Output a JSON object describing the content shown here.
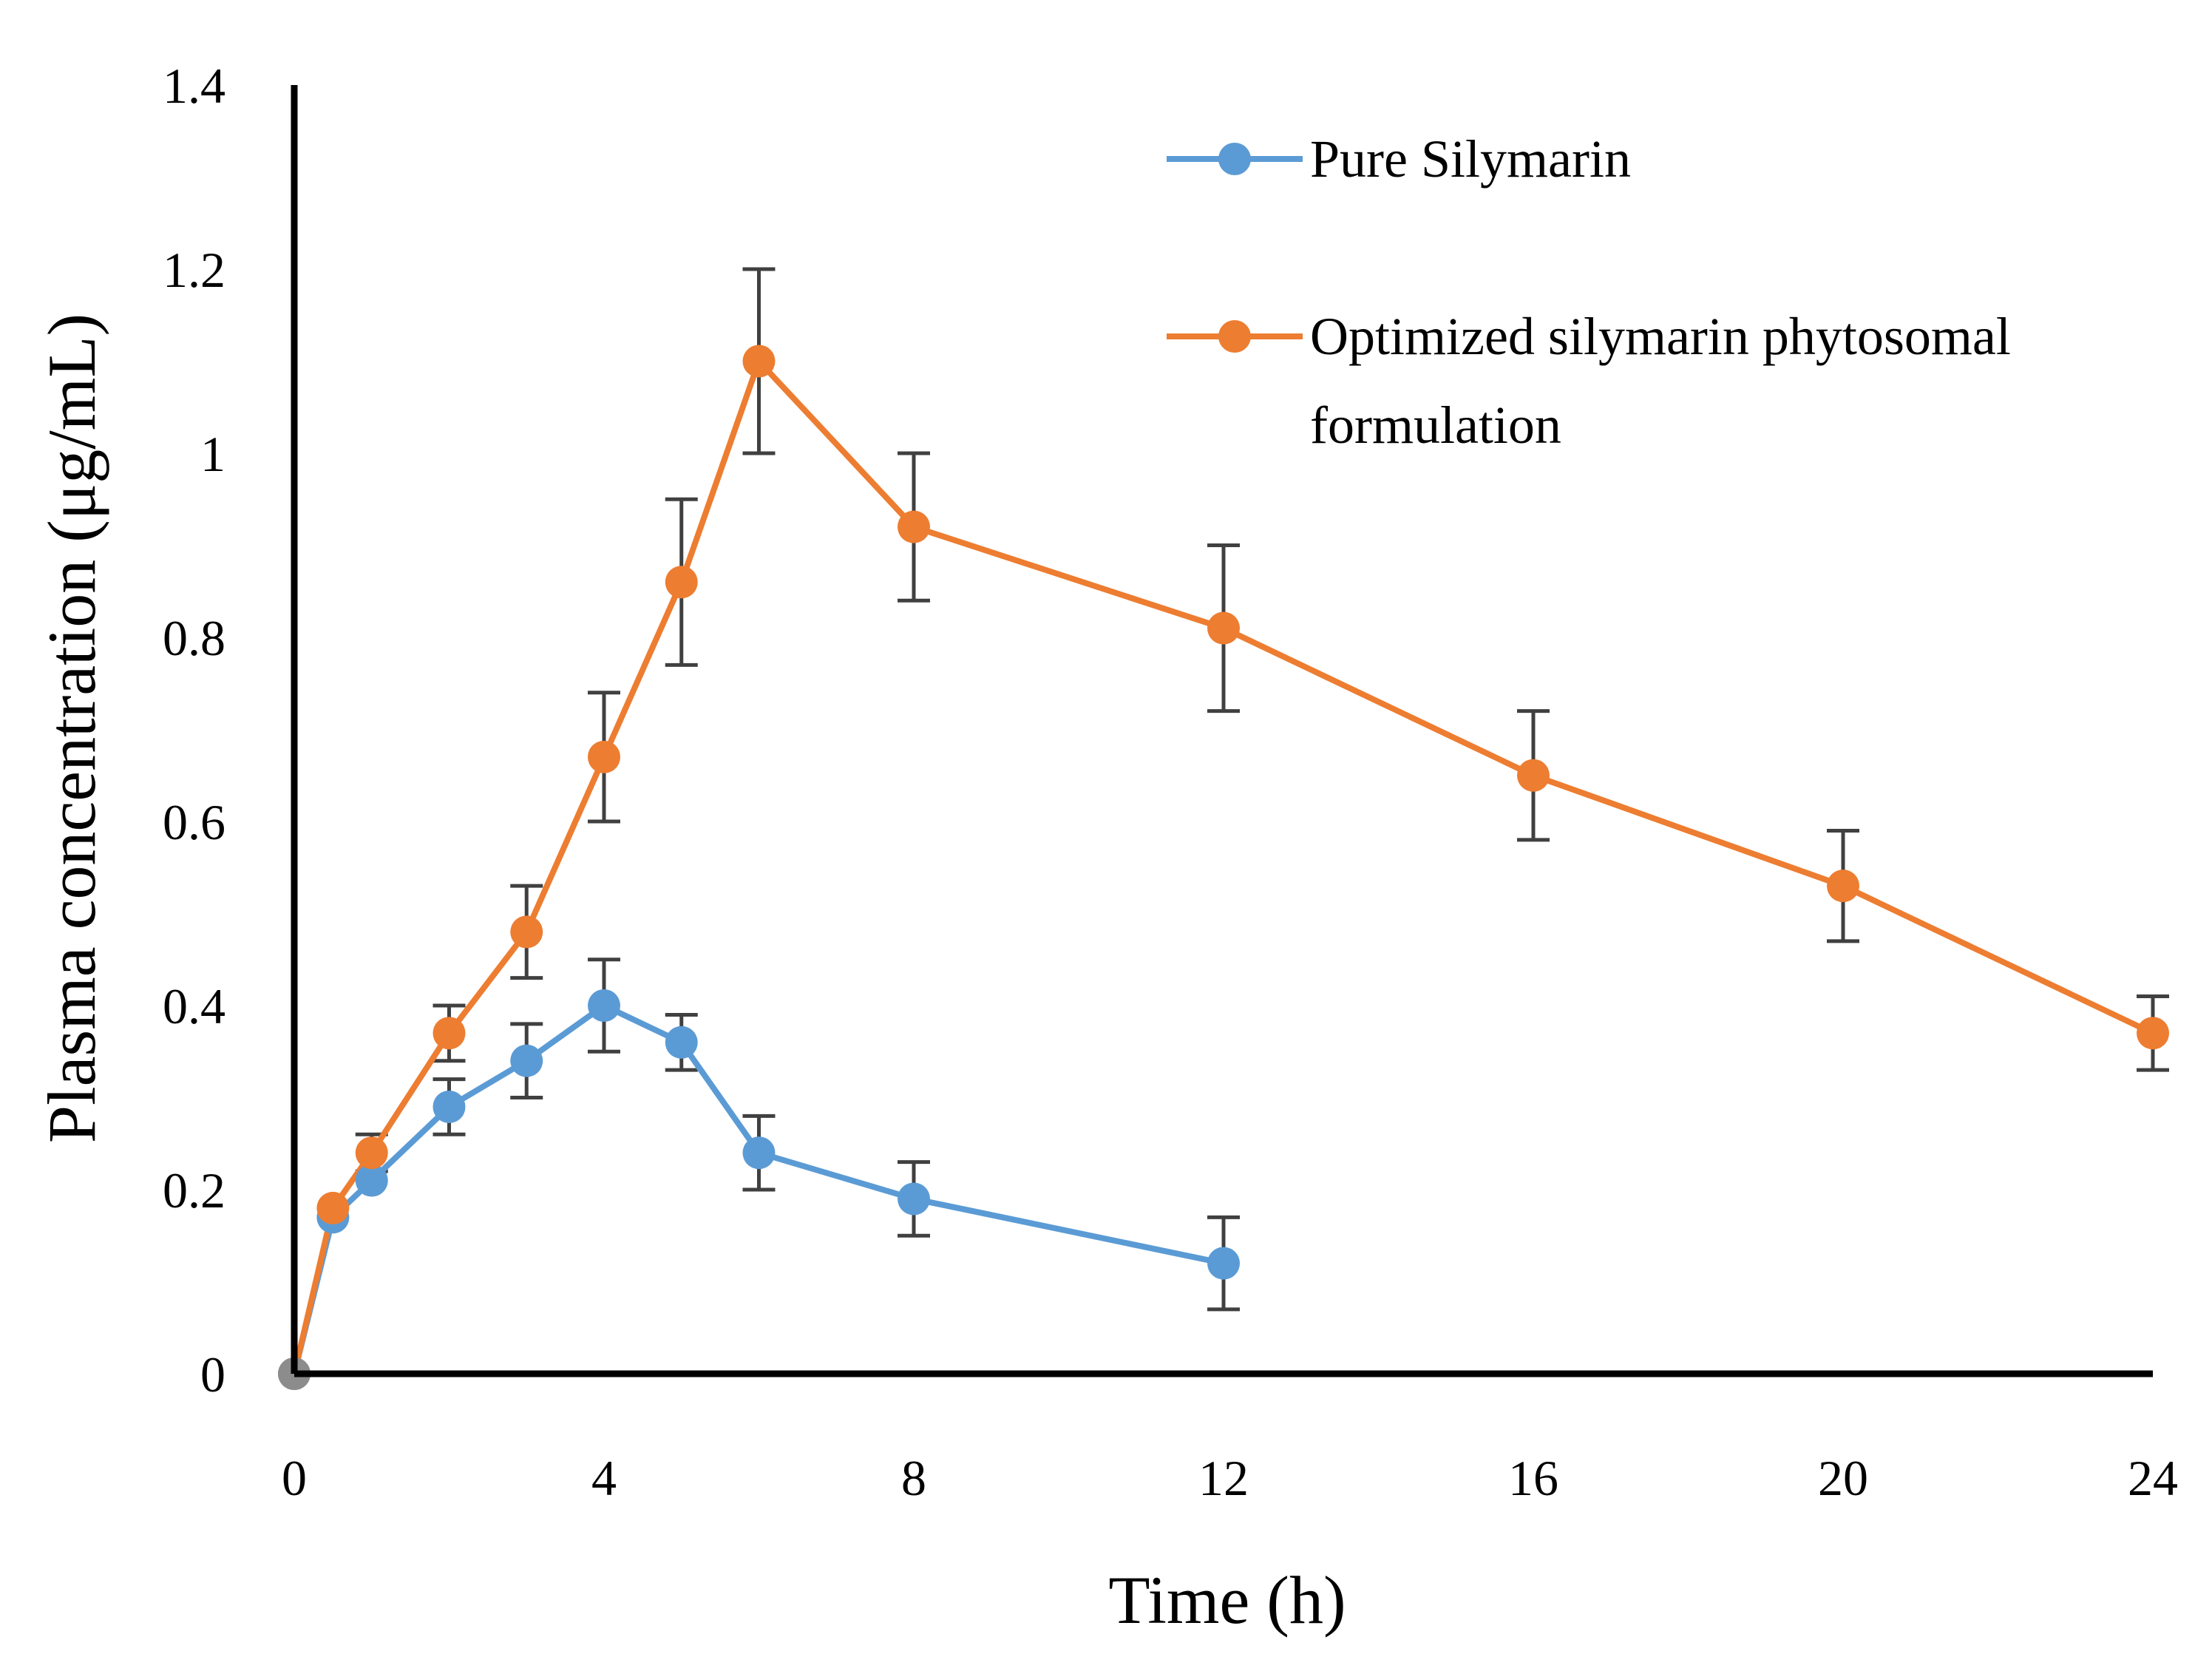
{
  "chart_data": {
    "type": "line",
    "title": "",
    "xlabel": "Time (h)",
    "ylabel": "Plasma concentration (μg/mL)",
    "xlim": [
      0,
      24
    ],
    "ylim": [
      0,
      1.4
    ],
    "xticks": [
      0,
      4,
      8,
      12,
      16,
      20,
      24
    ],
    "xtick_labels": [
      "0",
      "4",
      "8",
      "12",
      "16",
      "20",
      "24"
    ],
    "yticks": [
      0,
      0.2,
      0.4,
      0.6,
      0.8,
      1,
      1.2,
      1.4
    ],
    "ytick_labels": [
      "0",
      "0.2",
      "0.4",
      "0.6",
      "0.8",
      "1",
      "1.2",
      "1.4"
    ],
    "grid": false,
    "legend_position": "top-right",
    "series": [
      {
        "name": "Pure Silymarin",
        "legend_lines": [
          "Pure Silymarin"
        ],
        "color": "#5b9bd5",
        "x": [
          0,
          0.5,
          1,
          2,
          3,
          4,
          5,
          6,
          8,
          12
        ],
        "y": [
          0,
          0.17,
          0.21,
          0.29,
          0.34,
          0.4,
          0.36,
          0.24,
          0.19,
          0.12
        ],
        "error": [
          0,
          0,
          0,
          0.03,
          0.04,
          0.05,
          0.03,
          0.04,
          0.04,
          0.05
        ]
      },
      {
        "name": "Optimized silymarin phytosomal formulation",
        "legend_lines": [
          "Optimized silymarin phytosomal",
          "formulation"
        ],
        "color": "#ed7d31",
        "x": [
          0,
          0.5,
          1,
          2,
          3,
          4,
          5,
          6,
          8,
          12,
          16,
          20,
          24
        ],
        "y": [
          0,
          0.18,
          0.24,
          0.37,
          0.48,
          0.67,
          0.86,
          1.1,
          0.92,
          0.81,
          0.65,
          0.53,
          0.37
        ],
        "error": [
          0,
          0,
          0.02,
          0.03,
          0.05,
          0.07,
          0.09,
          0.1,
          0.08,
          0.09,
          0.07,
          0.06,
          0.04
        ]
      }
    ]
  }
}
